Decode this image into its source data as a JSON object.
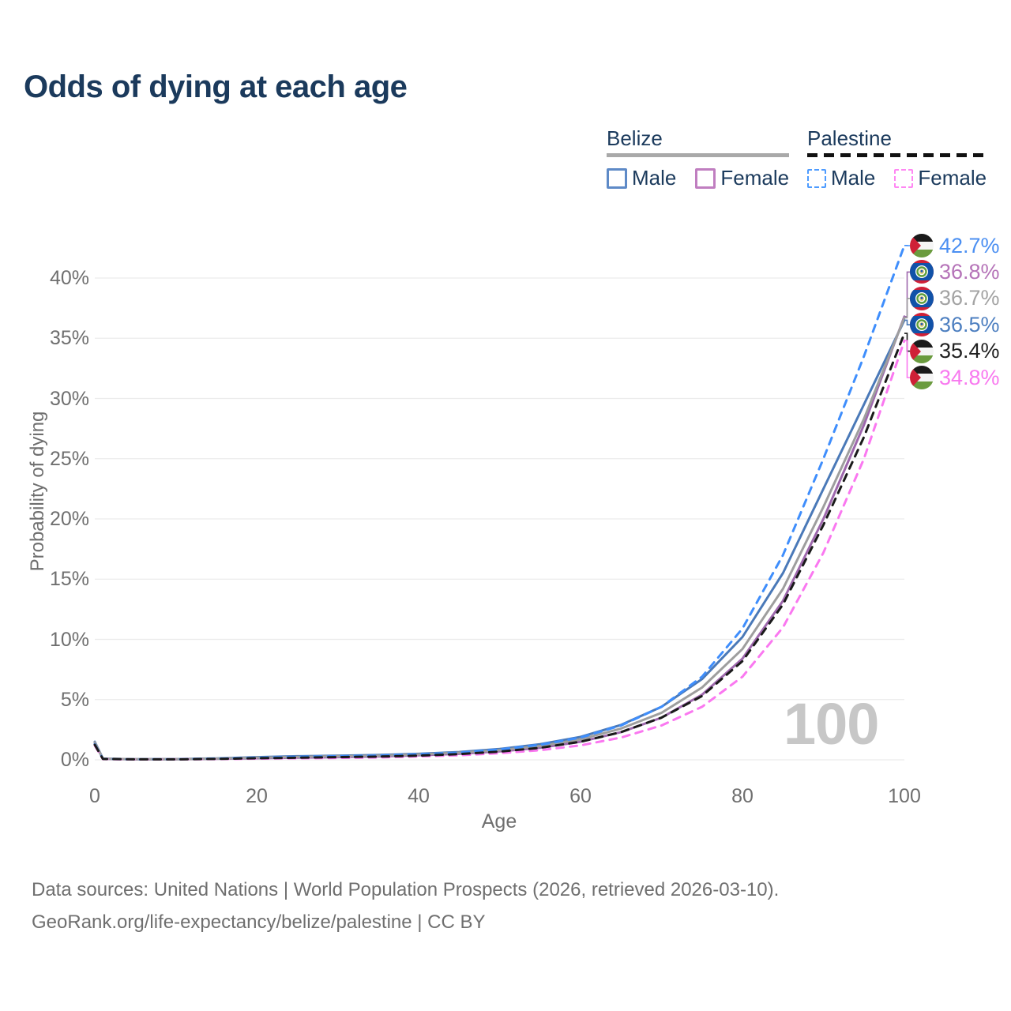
{
  "title": "Odds of dying at each age",
  "legend": {
    "groups": [
      {
        "name": "Belize",
        "line_style": "solid",
        "swatch_color": "#a9a9a9",
        "items": [
          {
            "label": "Male",
            "color": "#5e8ac7"
          },
          {
            "label": "Female",
            "color": "#c07ec0"
          }
        ]
      },
      {
        "name": "Palestine",
        "line_style": "dashed",
        "swatch_color": "#111111",
        "items": [
          {
            "label": "Male",
            "color": "#4d9bff"
          },
          {
            "label": "Female",
            "color": "#ff87f3"
          }
        ]
      }
    ]
  },
  "chart_data": {
    "type": "line",
    "title": "Odds of dying at each age",
    "xlabel": "Age",
    "ylabel": "Probability of dying",
    "xlim": [
      0,
      100
    ],
    "ylim": [
      0,
      40
    ],
    "grid": "horizontal",
    "x_tick_labels": [
      "0",
      "20",
      "40",
      "60",
      "80",
      "100"
    ],
    "x_tick_values": [
      0,
      20,
      40,
      60,
      80,
      100
    ],
    "y_tick_labels": [
      "0%",
      "5%",
      "10%",
      "15%",
      "20%",
      "25%",
      "30%",
      "35%",
      "40%"
    ],
    "y_tick_values": [
      0,
      5,
      10,
      15,
      20,
      25,
      30,
      35,
      40
    ],
    "ages": [
      0,
      1,
      5,
      10,
      15,
      20,
      25,
      30,
      35,
      40,
      45,
      50,
      55,
      60,
      65,
      70,
      75,
      80,
      85,
      90,
      95,
      100
    ],
    "unit": "percent",
    "series": [
      {
        "name": "Belize Male",
        "country": "Belize",
        "sex": "Male",
        "color": "#4a79b8",
        "dash": "solid",
        "end_value": 36.5,
        "values": [
          1.5,
          0.1,
          0.05,
          0.06,
          0.12,
          0.22,
          0.3,
          0.35,
          0.4,
          0.5,
          0.65,
          0.9,
          1.3,
          1.9,
          2.9,
          4.4,
          6.7,
          10.2,
          15.5,
          22.5,
          29.5,
          36.5
        ]
      },
      {
        "name": "Belize Female",
        "country": "Belize",
        "sex": "Female",
        "color": "#9e68ad",
        "dash": "solid",
        "end_value": 36.8,
        "values": [
          1.4,
          0.08,
          0.04,
          0.05,
          0.08,
          0.13,
          0.18,
          0.22,
          0.28,
          0.38,
          0.5,
          0.7,
          1.0,
          1.5,
          2.3,
          3.5,
          5.4,
          8.4,
          13.2,
          20.0,
          27.8,
          36.8
        ]
      },
      {
        "name": "Belize",
        "country": "Belize",
        "sex": "Both",
        "color": "#9e9e9e",
        "dash": "solid",
        "end_value": 36.7,
        "values": [
          1.45,
          0.09,
          0.05,
          0.05,
          0.1,
          0.18,
          0.25,
          0.3,
          0.35,
          0.45,
          0.6,
          0.8,
          1.15,
          1.7,
          2.6,
          3.9,
          6.0,
          9.2,
          14.2,
          21.0,
          28.3,
          36.7
        ]
      },
      {
        "name": "Palestine Male",
        "country": "Palestine",
        "sex": "Male",
        "color": "#3f8efc",
        "dash": "dashed",
        "end_value": 42.7,
        "values": [
          1.3,
          0.08,
          0.04,
          0.05,
          0.1,
          0.18,
          0.25,
          0.3,
          0.35,
          0.45,
          0.6,
          0.85,
          1.25,
          1.85,
          2.85,
          4.4,
          6.9,
          10.9,
          17.0,
          25.0,
          33.5,
          42.7
        ]
      },
      {
        "name": "Palestine Female",
        "country": "Palestine",
        "sex": "Female",
        "color": "#fa78f0",
        "dash": "dashed",
        "end_value": 34.8,
        "values": [
          1.2,
          0.06,
          0.03,
          0.04,
          0.06,
          0.1,
          0.13,
          0.16,
          0.2,
          0.28,
          0.38,
          0.55,
          0.8,
          1.2,
          1.85,
          2.85,
          4.4,
          6.9,
          11.0,
          17.2,
          25.0,
          34.8
        ]
      },
      {
        "name": "Palestine",
        "country": "Palestine",
        "sex": "Both",
        "color": "#1a1a1a",
        "dash": "dashed",
        "end_value": 35.4,
        "values": [
          1.25,
          0.07,
          0.04,
          0.04,
          0.08,
          0.13,
          0.18,
          0.22,
          0.27,
          0.35,
          0.48,
          0.68,
          1.0,
          1.5,
          2.3,
          3.5,
          5.3,
          8.2,
          12.9,
          19.5,
          26.8,
          35.4
        ]
      }
    ]
  },
  "end_labels": [
    {
      "value": "42.7%",
      "flag": "palestine",
      "series": "Palestine Male",
      "color": "#4b8ff2"
    },
    {
      "value": "36.8%",
      "flag": "belize",
      "series": "Belize Female",
      "color": "#b573b8"
    },
    {
      "value": "36.7%",
      "flag": "belize",
      "series": "Belize",
      "color": "#a3a3a3"
    },
    {
      "value": "36.5%",
      "flag": "belize",
      "series": "Belize Male",
      "color": "#4d7fc0"
    },
    {
      "value": "35.4%",
      "flag": "palestine",
      "series": "Palestine",
      "color": "#1f1f1f"
    },
    {
      "value": "34.8%",
      "flag": "palestine",
      "series": "Palestine Female",
      "color": "#f879ef"
    }
  ],
  "watermark": "100",
  "footer": {
    "line1": "Data sources: United Nations | World Population Prospects (2026, retrieved 2026-03-10).",
    "line2": "GeoRank.org/life-expectancy/belize/palestine | CC BY"
  }
}
